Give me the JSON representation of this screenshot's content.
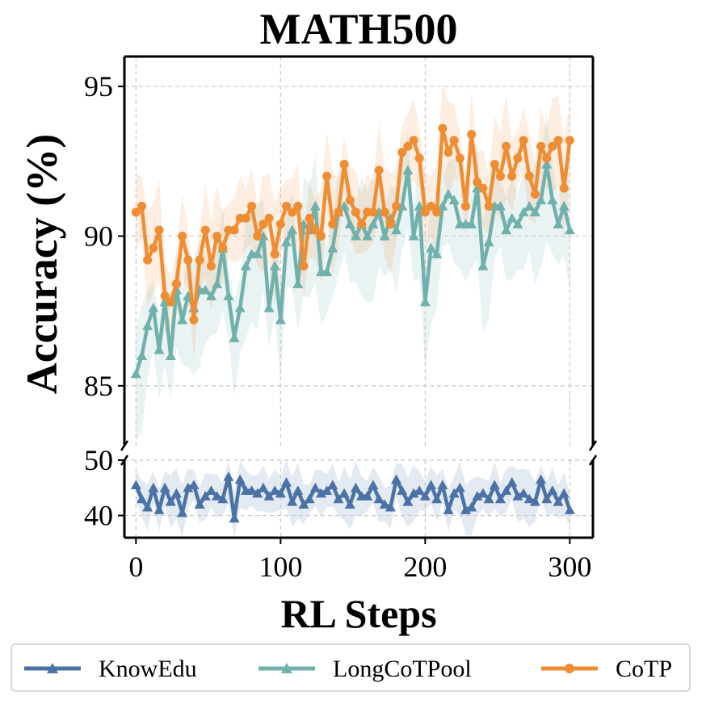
{
  "chart_data": {
    "type": "line",
    "title": "MATH500",
    "xlabel": "RL Steps",
    "ylabel": "Accuracy (%)",
    "broken_y_axis": true,
    "ylim_top": [
      83,
      96
    ],
    "ylim_bottom": [
      36,
      50
    ],
    "xlim": [
      -8,
      316
    ],
    "yticks_top": [
      85,
      90,
      95
    ],
    "yticks_bottom": [
      40,
      50
    ],
    "xticks": [
      0,
      100,
      200,
      300
    ],
    "grid": true,
    "legend_position": "bottom",
    "x": [
      0,
      4,
      8,
      12,
      16,
      20,
      24,
      28,
      32,
      36,
      40,
      44,
      48,
      52,
      56,
      60,
      64,
      68,
      72,
      76,
      80,
      84,
      88,
      92,
      96,
      100,
      104,
      108,
      112,
      116,
      120,
      124,
      128,
      132,
      136,
      140,
      144,
      148,
      152,
      156,
      160,
      164,
      168,
      172,
      176,
      180,
      184,
      188,
      192,
      196,
      200,
      204,
      208,
      212,
      216,
      220,
      224,
      228,
      232,
      236,
      240,
      244,
      248,
      252,
      256,
      260,
      264,
      268,
      272,
      276,
      280,
      284,
      288,
      292,
      296,
      300
    ],
    "series": [
      {
        "name": "KnowEdu",
        "color": "#4a72a6",
        "marker": "triangle",
        "panel": "bottom",
        "values": [
          45.5,
          43.0,
          41.5,
          45.0,
          41.0,
          45.0,
          42.5,
          44.0,
          40.5,
          45.0,
          45.5,
          42.0,
          43.5,
          44.5,
          43.5,
          43.0,
          47.0,
          39.5,
          46.5,
          44.5,
          44.5,
          44.0,
          45.0,
          43.5,
          44.5,
          44.0,
          46.0,
          42.5,
          44.5,
          42.0,
          43.0,
          45.0,
          44.0,
          44.5,
          45.5,
          43.0,
          44.0,
          42.0,
          45.0,
          43.5,
          43.5,
          45.5,
          43.0,
          42.0,
          41.5,
          46.5,
          44.5,
          42.5,
          44.0,
          44.5,
          43.5,
          45.5,
          43.0,
          45.5,
          41.0,
          44.0,
          45.0,
          41.0,
          41.5,
          43.5,
          44.0,
          43.0,
          45.5,
          43.0,
          44.5,
          46.0,
          43.5,
          44.0,
          43.0,
          42.5,
          46.5,
          43.0,
          44.5,
          42.5,
          44.0,
          41.0
        ]
      },
      {
        "name": "LongCoTPool",
        "color": "#70b1ac",
        "marker": "triangle",
        "panel": "top",
        "values": [
          85.4,
          86.0,
          87.0,
          87.6,
          86.2,
          87.8,
          86.0,
          88.2,
          87.2,
          88.0,
          87.6,
          88.2,
          88.2,
          88.0,
          88.4,
          89.6,
          88.0,
          86.6,
          87.6,
          89.0,
          89.4,
          89.4,
          90.0,
          87.6,
          89.0,
          87.2,
          89.8,
          90.2,
          88.4,
          90.4,
          90.2,
          91.0,
          88.8,
          88.8,
          89.6,
          90.8,
          91.0,
          90.4,
          90.0,
          90.4,
          90.0,
          90.4,
          90.8,
          90.0,
          90.6,
          90.2,
          91.0,
          92.2,
          90.0,
          91.0,
          87.8,
          89.6,
          89.4,
          91.0,
          91.4,
          91.2,
          90.4,
          90.4,
          90.4,
          91.6,
          89.0,
          89.8,
          91.0,
          91.0,
          90.2,
          90.6,
          90.4,
          90.8,
          91.0,
          90.8,
          91.2,
          92.4,
          91.2,
          90.4,
          91.0,
          90.2
        ]
      },
      {
        "name": "CoTP",
        "color": "#ef8d33",
        "marker": "circle",
        "panel": "top",
        "values": [
          90.8,
          91.0,
          89.2,
          89.6,
          90.2,
          88.0,
          87.8,
          88.4,
          90.0,
          89.2,
          87.2,
          89.2,
          90.2,
          89.0,
          90.0,
          89.6,
          90.2,
          90.2,
          90.6,
          90.6,
          91.0,
          90.0,
          90.4,
          90.6,
          89.4,
          90.4,
          91.0,
          90.8,
          91.0,
          89.0,
          90.6,
          90.2,
          90.0,
          92.0,
          90.4,
          90.8,
          92.4,
          91.2,
          90.8,
          90.4,
          90.8,
          90.8,
          92.2,
          90.8,
          90.4,
          91.0,
          92.8,
          93.0,
          93.2,
          92.6,
          90.8,
          91.0,
          90.8,
          93.6,
          92.8,
          93.2,
          92.6,
          91.0,
          93.4,
          91.8,
          91.6,
          91.0,
          92.4,
          92.0,
          93.0,
          92.0,
          92.6,
          93.2,
          92.0,
          91.4,
          93.0,
          92.6,
          93.0,
          93.2,
          91.6,
          93.2
        ]
      }
    ]
  }
}
